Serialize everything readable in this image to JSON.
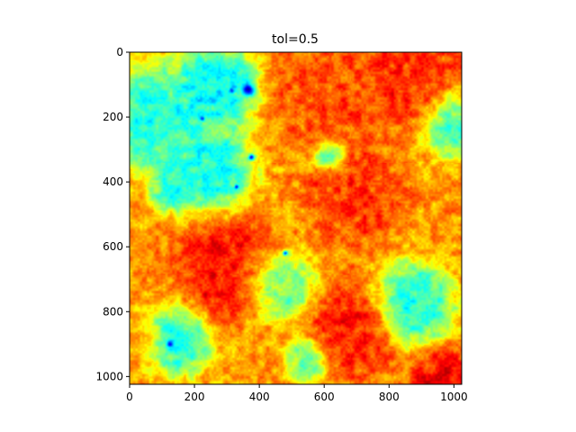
{
  "chart_data": {
    "type": "heatmap",
    "title": "tol=0.5",
    "colormap": "jet",
    "image_extent": {
      "x": [
        0,
        1024
      ],
      "y": [
        0,
        1024
      ]
    },
    "y_inverted": true,
    "grid": false,
    "legend": "none",
    "x_ticks": [
      0,
      200,
      400,
      600,
      800,
      1000
    ],
    "y_ticks": [
      0,
      200,
      400,
      600,
      800,
      1000
    ],
    "field_blobs": [
      {
        "cx": 80,
        "cy": 200,
        "r": 140,
        "v": 0.35
      },
      {
        "cx": 270,
        "cy": 110,
        "r": 110,
        "v": 0.3
      },
      {
        "cx": 250,
        "cy": 360,
        "r": 110,
        "v": 0.33
      },
      {
        "cx": 130,
        "cy": 420,
        "r": 60,
        "v": 0.38
      },
      {
        "cx": 1000,
        "cy": 220,
        "r": 90,
        "v": 0.4
      },
      {
        "cx": 620,
        "cy": 320,
        "r": 45,
        "v": 0.38
      },
      {
        "cx": 450,
        "cy": 720,
        "r": 100,
        "v": 0.4
      },
      {
        "cx": 870,
        "cy": 780,
        "r": 110,
        "v": 0.35
      },
      {
        "cx": 150,
        "cy": 890,
        "r": 90,
        "v": 0.35
      },
      {
        "cx": 540,
        "cy": 950,
        "r": 60,
        "v": 0.45
      },
      {
        "cx": 320,
        "cy": 680,
        "r": 140,
        "v": 0.9
      },
      {
        "cx": 620,
        "cy": 120,
        "r": 160,
        "v": 0.82
      },
      {
        "cx": 870,
        "cy": 80,
        "r": 140,
        "v": 0.85
      },
      {
        "cx": 700,
        "cy": 430,
        "r": 130,
        "v": 0.84
      },
      {
        "cx": 700,
        "cy": 850,
        "r": 120,
        "v": 0.88
      },
      {
        "cx": 960,
        "cy": 1000,
        "r": 80,
        "v": 0.9
      },
      {
        "cx": 40,
        "cy": 900,
        "r": 60,
        "v": 0.7
      },
      {
        "cx": 400,
        "cy": 900,
        "r": 90,
        "v": 0.72
      }
    ],
    "field_spots": [
      {
        "cx": 365,
        "cy": 115,
        "r": 18,
        "v": 0.08
      },
      {
        "cx": 315,
        "cy": 120,
        "r": 8,
        "v": 0.15
      },
      {
        "cx": 225,
        "cy": 205,
        "r": 8,
        "v": 0.18
      },
      {
        "cx": 375,
        "cy": 325,
        "r": 10,
        "v": 0.12
      },
      {
        "cx": 330,
        "cy": 415,
        "r": 7,
        "v": 0.18
      },
      {
        "cx": 125,
        "cy": 900,
        "r": 10,
        "v": 0.2
      },
      {
        "cx": 480,
        "cy": 620,
        "r": 8,
        "v": 0.25
      }
    ]
  }
}
